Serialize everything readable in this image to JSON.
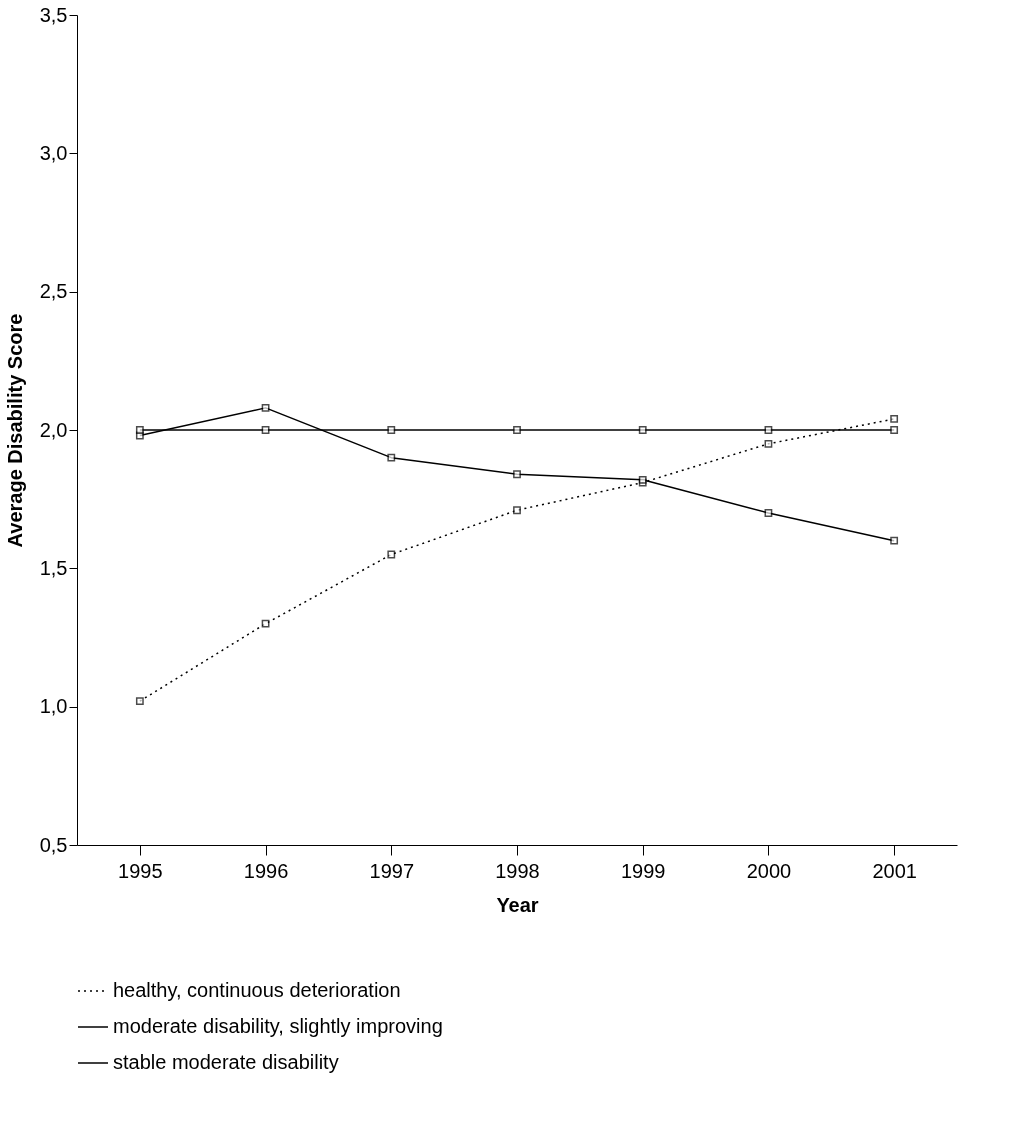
{
  "chart_data": {
    "type": "line",
    "xlabel": "Year",
    "ylabel": "Average Disability Score",
    "categories": [
      "1995",
      "1996",
      "1997",
      "1998",
      "1999",
      "2000",
      "2001"
    ],
    "series": [
      {
        "name": "healthy, continuous deterioration",
        "color": "#000000",
        "line_style": "dotted",
        "values": [
          1.02,
          1.3,
          1.55,
          1.71,
          1.81,
          1.95,
          2.04
        ]
      },
      {
        "name": "moderate disability, slightly improving",
        "color": "#000000",
        "line_style": "solid",
        "values": [
          1.98,
          2.08,
          1.9,
          1.84,
          1.82,
          1.7,
          1.6
        ]
      },
      {
        "name": "stable moderate disability",
        "color": "#000000",
        "line_style": "solid",
        "values": [
          2.0,
          2.0,
          2.0,
          2.0,
          2.0,
          2.0,
          2.0
        ]
      }
    ],
    "ylim": [
      0.5,
      3.5
    ],
    "yticks": [
      {
        "value": 0.5,
        "label": "0,5"
      },
      {
        "value": 1.0,
        "label": "1,0"
      },
      {
        "value": 1.5,
        "label": "1,5"
      },
      {
        "value": 2.0,
        "label": "2,0"
      },
      {
        "value": 2.5,
        "label": "2,5"
      },
      {
        "value": 3.0,
        "label": "3,0"
      },
      {
        "value": 3.5,
        "label": "3,5"
      }
    ],
    "marker": "square",
    "legend": "bottom",
    "grid": false
  }
}
